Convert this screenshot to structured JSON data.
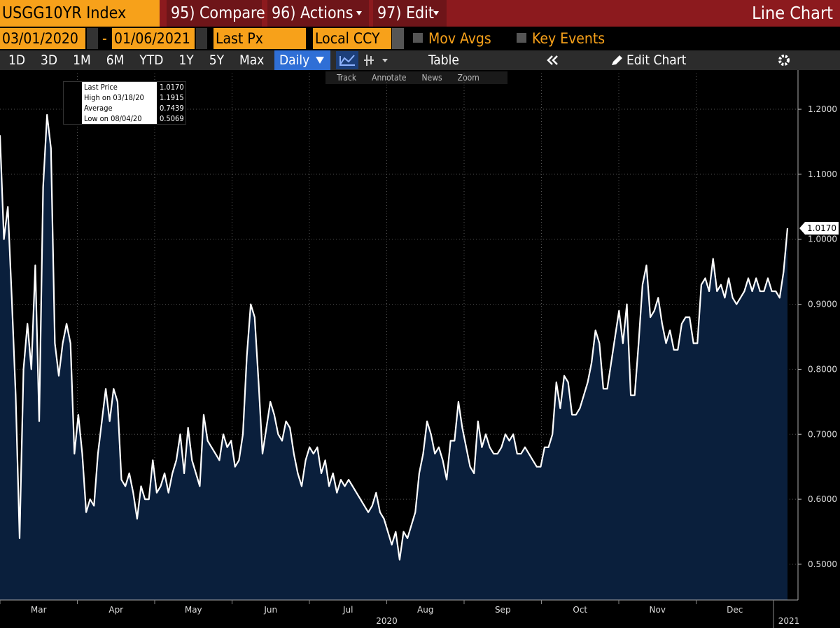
{
  "toolbar": {
    "ticker": "USGG10YR Index",
    "compare": "95) Compare",
    "actions": "96) Actions",
    "edit": "97) Edit",
    "view_title": "Line Chart",
    "start_date": "03/01/2020",
    "date_separator": "-",
    "end_date": "01/06/2021",
    "field": "Last Px",
    "currency": "Local CCY",
    "mov_avgs": "Mov Avgs",
    "key_events": "Key Events",
    "ranges": [
      "1D",
      "3D",
      "1M",
      "6M",
      "YTD",
      "1Y",
      "5Y",
      "Max"
    ],
    "frequency": "Daily",
    "table": "Table",
    "edit_chart": "Edit Chart",
    "tools": [
      "Track",
      "Annotate",
      "News",
      "Zoom"
    ]
  },
  "legend": {
    "rows": [
      {
        "label": "Last Price",
        "value": "1.0170"
      },
      {
        "label": "High on 03/18/20",
        "value": "1.1915"
      },
      {
        "label": "Average",
        "value": "0.7439"
      },
      {
        "label": "Low on 08/04/20",
        "value": "0.5069"
      }
    ]
  },
  "chart_data": {
    "type": "line",
    "color": "#ffffff",
    "fill": "#0a1f3c",
    "grid": true,
    "values": [
      1.16,
      1.0,
      1.05,
      0.91,
      0.76,
      0.54,
      0.8,
      0.87,
      0.8,
      0.96,
      0.72,
      1.08,
      1.1915,
      1.14,
      0.84,
      0.79,
      0.84,
      0.87,
      0.84,
      0.67,
      0.73,
      0.67,
      0.58,
      0.6,
      0.59,
      0.67,
      0.72,
      0.77,
      0.72,
      0.77,
      0.75,
      0.63,
      0.62,
      0.64,
      0.61,
      0.57,
      0.62,
      0.6,
      0.6,
      0.66,
      0.61,
      0.62,
      0.64,
      0.61,
      0.64,
      0.66,
      0.7,
      0.64,
      0.71,
      0.66,
      0.64,
      0.62,
      0.73,
      0.69,
      0.68,
      0.67,
      0.66,
      0.7,
      0.68,
      0.69,
      0.65,
      0.66,
      0.7,
      0.82,
      0.9,
      0.88,
      0.78,
      0.67,
      0.71,
      0.75,
      0.73,
      0.7,
      0.69,
      0.72,
      0.71,
      0.67,
      0.64,
      0.62,
      0.66,
      0.68,
      0.67,
      0.68,
      0.64,
      0.66,
      0.62,
      0.64,
      0.61,
      0.63,
      0.62,
      0.63,
      0.62,
      0.61,
      0.6,
      0.59,
      0.58,
      0.59,
      0.61,
      0.58,
      0.57,
      0.55,
      0.53,
      0.55,
      0.5069,
      0.55,
      0.54,
      0.56,
      0.58,
      0.64,
      0.67,
      0.72,
      0.7,
      0.67,
      0.68,
      0.66,
      0.63,
      0.69,
      0.69,
      0.75,
      0.71,
      0.68,
      0.65,
      0.64,
      0.72,
      0.68,
      0.7,
      0.68,
      0.67,
      0.67,
      0.68,
      0.7,
      0.69,
      0.7,
      0.67,
      0.67,
      0.68,
      0.67,
      0.66,
      0.65,
      0.65,
      0.68,
      0.68,
      0.7,
      0.78,
      0.74,
      0.79,
      0.78,
      0.73,
      0.73,
      0.74,
      0.76,
      0.78,
      0.81,
      0.86,
      0.84,
      0.77,
      0.77,
      0.81,
      0.85,
      0.89,
      0.84,
      0.9,
      0.76,
      0.76,
      0.84,
      0.93,
      0.96,
      0.88,
      0.89,
      0.91,
      0.87,
      0.84,
      0.86,
      0.83,
      0.83,
      0.87,
      0.88,
      0.88,
      0.84,
      0.84,
      0.93,
      0.94,
      0.92,
      0.97,
      0.92,
      0.93,
      0.91,
      0.94,
      0.91,
      0.9,
      0.91,
      0.92,
      0.94,
      0.92,
      0.94,
      0.92,
      0.92,
      0.94,
      0.92,
      0.92,
      0.91,
      0.95,
      1.017
    ],
    "last_label": "1.0170",
    "months": [
      "Mar",
      "Apr",
      "May",
      "Jun",
      "Jul",
      "Aug",
      "Sep",
      "Oct",
      "Nov",
      "Dec"
    ],
    "years": [
      "2020",
      "2021"
    ],
    "ylim": [
      0.445,
      1.255
    ],
    "yticks": [
      {
        "value": 0.5,
        "label": "0.5000"
      },
      {
        "value": 0.6,
        "label": "0.6000"
      },
      {
        "value": 0.7,
        "label": "0.7000"
      },
      {
        "value": 0.8,
        "label": "0.8000"
      },
      {
        "value": 0.9,
        "label": "0.9000"
      },
      {
        "value": 1.0,
        "label": "1.0000"
      },
      {
        "value": 1.1,
        "label": "1.1000"
      },
      {
        "value": 1.2,
        "label": "1.2000"
      }
    ]
  }
}
